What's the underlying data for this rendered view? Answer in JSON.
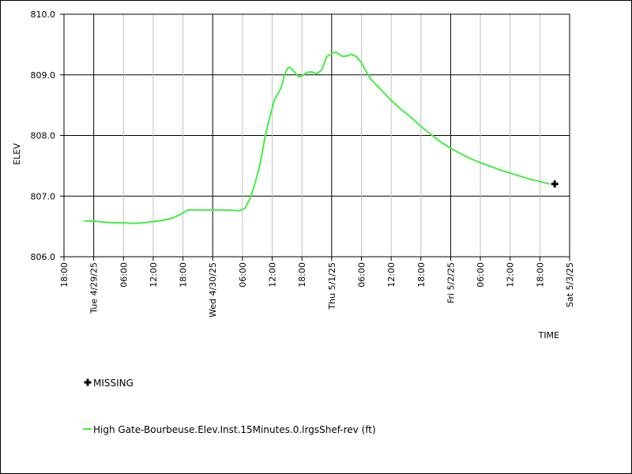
{
  "chart_data": {
    "type": "line",
    "ylabel": "ELEV",
    "xlabel": "TIME",
    "ylim": [
      806.0,
      810.0
    ],
    "y_ticks": [
      806.0,
      807.0,
      808.0,
      809.0,
      810.0
    ],
    "y_tick_labels": [
      "806.0",
      "807.0",
      "808.0",
      "809.0",
      "810.0"
    ],
    "x_range_hours": [
      0,
      102
    ],
    "x_ticks": [
      {
        "hour": 0,
        "label": "18:00",
        "major": false
      },
      {
        "hour": 6,
        "label": "Tue 4/29/25",
        "major": true
      },
      {
        "hour": 12,
        "label": "06:00",
        "major": false
      },
      {
        "hour": 18,
        "label": "12:00",
        "major": false
      },
      {
        "hour": 24,
        "label": "18:00",
        "major": false
      },
      {
        "hour": 30,
        "label": "Wed 4/30/25",
        "major": true
      },
      {
        "hour": 36,
        "label": "06:00",
        "major": false
      },
      {
        "hour": 42,
        "label": "12:00",
        "major": false
      },
      {
        "hour": 48,
        "label": "18:00",
        "major": false
      },
      {
        "hour": 54,
        "label": "Thu 5/1/25",
        "major": true
      },
      {
        "hour": 60,
        "label": "06:00",
        "major": false
      },
      {
        "hour": 66,
        "label": "12:00",
        "major": false
      },
      {
        "hour": 72,
        "label": "18:00",
        "major": false
      },
      {
        "hour": 78,
        "label": "Fri 5/2/25",
        "major": true
      },
      {
        "hour": 84,
        "label": "06:00",
        "major": false
      },
      {
        "hour": 90,
        "label": "12:00",
        "major": false
      },
      {
        "hour": 96,
        "label": "18:00",
        "major": false
      },
      {
        "hour": 102,
        "label": "Sat 5/3/25",
        "major": true
      }
    ],
    "grid": true,
    "legend_placement": "bottom-left",
    "series": [
      {
        "name": "High Gate-Bourbeuse.Elev.Inst.15Minutes.0.lrgsShef-rev (ft)",
        "color": "#44ee44",
        "points": [
          [
            4.0,
            806.59
          ],
          [
            6.0,
            806.59
          ],
          [
            8.0,
            806.57
          ],
          [
            10.0,
            806.56
          ],
          [
            12.0,
            806.56
          ],
          [
            14.0,
            806.55
          ],
          [
            16.0,
            806.56
          ],
          [
            18.0,
            806.58
          ],
          [
            20.0,
            806.6
          ],
          [
            22.0,
            806.64
          ],
          [
            23.5,
            806.7
          ],
          [
            25.0,
            806.77
          ],
          [
            27.0,
            806.77
          ],
          [
            30.0,
            806.77
          ],
          [
            33.0,
            806.77
          ],
          [
            35.5,
            806.76
          ],
          [
            36.5,
            806.8
          ],
          [
            37.5,
            806.95
          ],
          [
            38.5,
            807.2
          ],
          [
            39.5,
            807.5
          ],
          [
            40.5,
            807.95
          ],
          [
            41.5,
            808.3
          ],
          [
            42.5,
            808.6
          ],
          [
            43.8,
            808.78
          ],
          [
            44.5,
            809.0
          ],
          [
            45.0,
            809.1
          ],
          [
            45.5,
            809.13
          ],
          [
            46.5,
            809.05
          ],
          [
            47.3,
            808.97
          ],
          [
            48.0,
            808.98
          ],
          [
            49.0,
            809.04
          ],
          [
            50.0,
            809.05
          ],
          [
            51.0,
            809.02
          ],
          [
            52.0,
            809.08
          ],
          [
            53.0,
            809.3
          ],
          [
            54.5,
            809.37
          ],
          [
            55.0,
            809.37
          ],
          [
            56.0,
            809.31
          ],
          [
            57.0,
            809.31
          ],
          [
            58.0,
            809.34
          ],
          [
            59.0,
            809.3
          ],
          [
            60.0,
            809.2
          ],
          [
            61.0,
            809.05
          ],
          [
            62.0,
            808.92
          ],
          [
            64.0,
            808.75
          ],
          [
            66.0,
            808.58
          ],
          [
            68.0,
            808.43
          ],
          [
            70.0,
            808.3
          ],
          [
            72.0,
            808.15
          ],
          [
            74.0,
            808.02
          ],
          [
            76.0,
            807.89
          ],
          [
            78.0,
            807.79
          ],
          [
            80.0,
            807.7
          ],
          [
            82.0,
            807.62
          ],
          [
            84.0,
            807.55
          ],
          [
            86.0,
            807.49
          ],
          [
            88.0,
            807.43
          ],
          [
            90.0,
            807.38
          ],
          [
            92.0,
            807.33
          ],
          [
            94.0,
            807.28
          ],
          [
            96.0,
            807.24
          ],
          [
            98.0,
            807.2
          ]
        ]
      },
      {
        "name": "MISSING",
        "marker": "plus",
        "color": "#000000",
        "points": [
          [
            99.0,
            807.2
          ]
        ]
      }
    ]
  }
}
